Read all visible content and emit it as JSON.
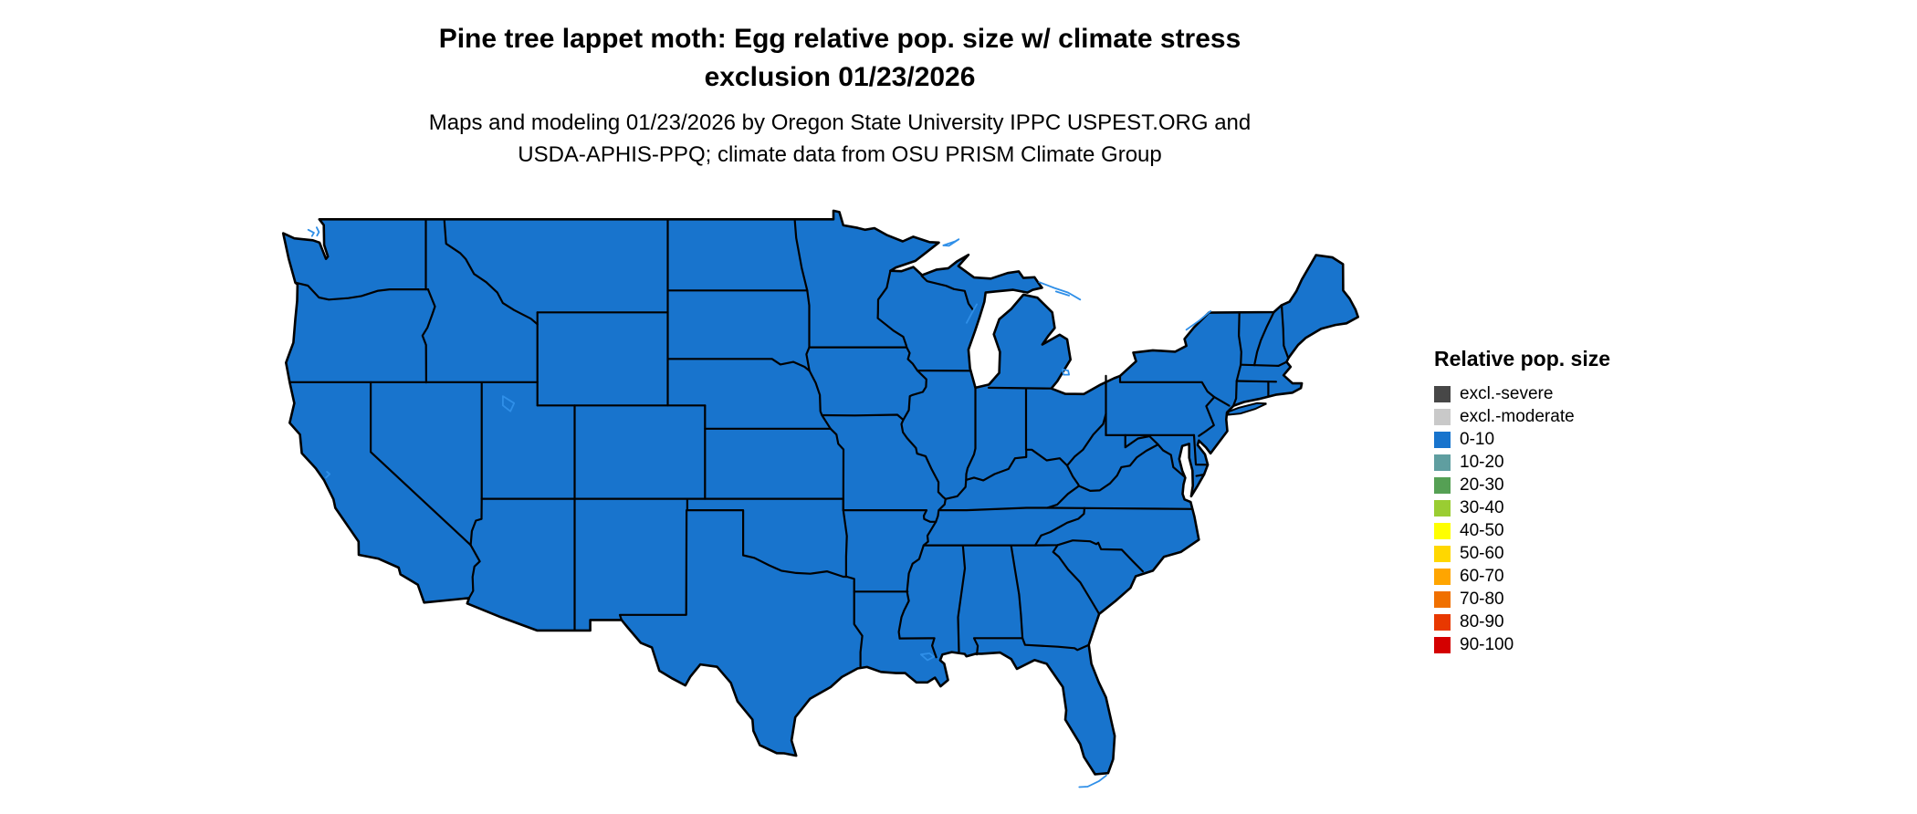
{
  "header": {
    "title_line1": "Pine tree lappet moth: Egg relative pop. size w/ climate stress",
    "title_line2": "exclusion 01/23/2026",
    "subtitle_line1": "Maps and modeling 01/23/2026 by Oregon State University IPPC USPEST.ORG and",
    "subtitle_line2": "USDA-APHIS-PPQ; climate data from OSU PRISM Climate Group"
  },
  "legend": {
    "title": "Relative pop. size",
    "items": [
      {
        "label": "excl.-severe",
        "color": "#474747"
      },
      {
        "label": "excl.-moderate",
        "color": "#C9C9C9"
      },
      {
        "label": "0-10",
        "color": "#1874CD"
      },
      {
        "label": "10-20",
        "color": "#5F9EA0"
      },
      {
        "label": "20-30",
        "color": "#55A054"
      },
      {
        "label": "30-40",
        "color": "#9ACD32"
      },
      {
        "label": "40-50",
        "color": "#FFFF00"
      },
      {
        "label": "50-60",
        "color": "#FFD700"
      },
      {
        "label": "60-70",
        "color": "#FFA500"
      },
      {
        "label": "70-80",
        "color": "#F07000"
      },
      {
        "label": "80-90",
        "color": "#E83800"
      },
      {
        "label": "90-100",
        "color": "#D40000"
      }
    ]
  },
  "map": {
    "region": "Contiguous United States",
    "fill_value_class": "0-10",
    "fill_color": "#1874CD",
    "border_color": "#000000",
    "water_color": "#2F8FE8"
  }
}
